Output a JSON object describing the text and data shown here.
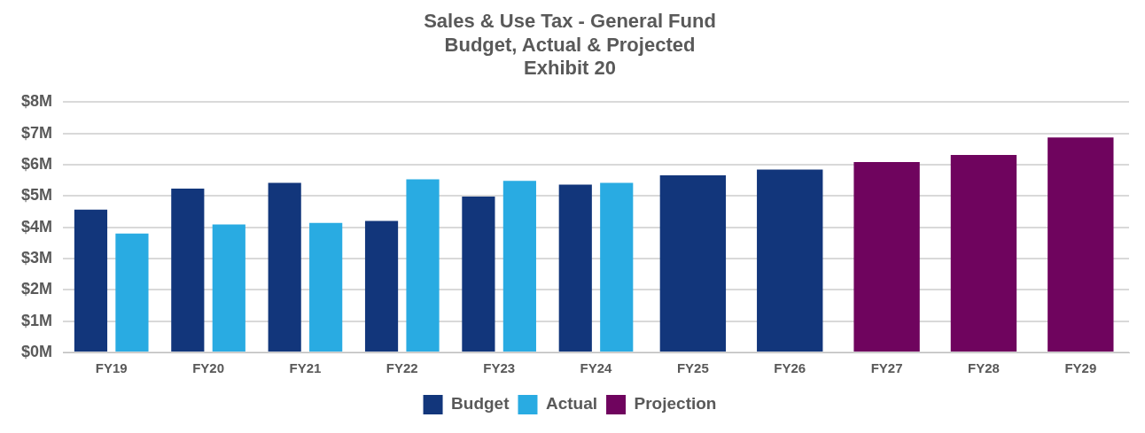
{
  "chart_data": {
    "type": "bar",
    "title": "Sales & Use Tax - General Fund\nBudget, Actual & Projected\nExhibit 20",
    "categories": [
      "FY19",
      "FY20",
      "FY21",
      "FY22",
      "FY23",
      "FY24",
      "FY25",
      "FY26",
      "FY27",
      "FY28",
      "FY29"
    ],
    "series": [
      {
        "name": "Budget",
        "color": "#12367b",
        "values": [
          4.56,
          5.23,
          5.42,
          4.2,
          4.98,
          5.36,
          5.66,
          5.84,
          null,
          null,
          null
        ]
      },
      {
        "name": "Actual",
        "color": "#29abe2",
        "values": [
          3.8,
          4.09,
          4.14,
          5.53,
          5.48,
          5.42,
          null,
          null,
          null,
          null,
          null
        ]
      },
      {
        "name": "Projection",
        "color": "#6f045e",
        "values": [
          null,
          null,
          null,
          null,
          null,
          null,
          null,
          null,
          6.08,
          6.31,
          6.87
        ]
      }
    ],
    "ylim": [
      0,
      8
    ],
    "yticks": [
      {
        "value": 0,
        "label": "$0M"
      },
      {
        "value": 1,
        "label": "$1M"
      },
      {
        "value": 2,
        "label": "$2M"
      },
      {
        "value": 3,
        "label": "$3M"
      },
      {
        "value": 4,
        "label": "$4M"
      },
      {
        "value": 5,
        "label": "$5M"
      },
      {
        "value": 6,
        "label": "$6M"
      },
      {
        "value": 7,
        "label": "$7M"
      },
      {
        "value": 8,
        "label": "$8M"
      }
    ],
    "grid": "y",
    "legend": "bottom"
  }
}
